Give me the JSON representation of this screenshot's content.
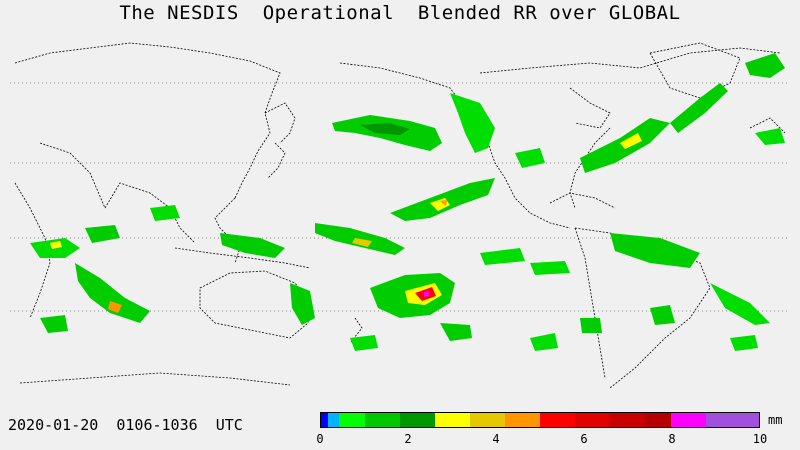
{
  "title": "The NESDIS  Operational  Blended RR over GLOBAL",
  "timestamp": "2020-01-20  0106-1036  UTC",
  "legend": {
    "unit": "mm",
    "min": 0,
    "max": 10,
    "tick_labels": [
      "0",
      "2",
      "4",
      "6",
      "8",
      "10"
    ],
    "tick_values": [
      0,
      2,
      4,
      6,
      8,
      10
    ],
    "bins": [
      {
        "from": 0.0,
        "to": 0.15,
        "color": "#0000ff"
      },
      {
        "from": 0.15,
        "to": 0.4,
        "color": "#00b4ff"
      },
      {
        "from": 0.4,
        "to": 1.0,
        "color": "#00ff00"
      },
      {
        "from": 1.0,
        "to": 1.8,
        "color": "#00c800"
      },
      {
        "from": 1.8,
        "to": 2.6,
        "color": "#009600"
      },
      {
        "from": 2.6,
        "to": 3.4,
        "color": "#ffff00"
      },
      {
        "from": 3.4,
        "to": 4.2,
        "color": "#e6c800"
      },
      {
        "from": 4.2,
        "to": 5.0,
        "color": "#ff9600"
      },
      {
        "from": 5.0,
        "to": 5.8,
        "color": "#ff0000"
      },
      {
        "from": 5.8,
        "to": 6.6,
        "color": "#e10000"
      },
      {
        "from": 6.6,
        "to": 7.4,
        "color": "#c80000"
      },
      {
        "from": 7.4,
        "to": 8.0,
        "color": "#b40000"
      },
      {
        "from": 8.0,
        "to": 8.8,
        "color": "#ff00ff"
      },
      {
        "from": 8.8,
        "to": 10.0,
        "color": "#a050dc"
      }
    ]
  },
  "map": {
    "projection": "cylindrical equidistant",
    "center_longitude": 180,
    "latitude_gridlines": [
      60,
      30,
      0,
      -30
    ],
    "gridline_style": "dotted",
    "background_color": "#f0f0f0",
    "coastline_color": "#000000"
  }
}
